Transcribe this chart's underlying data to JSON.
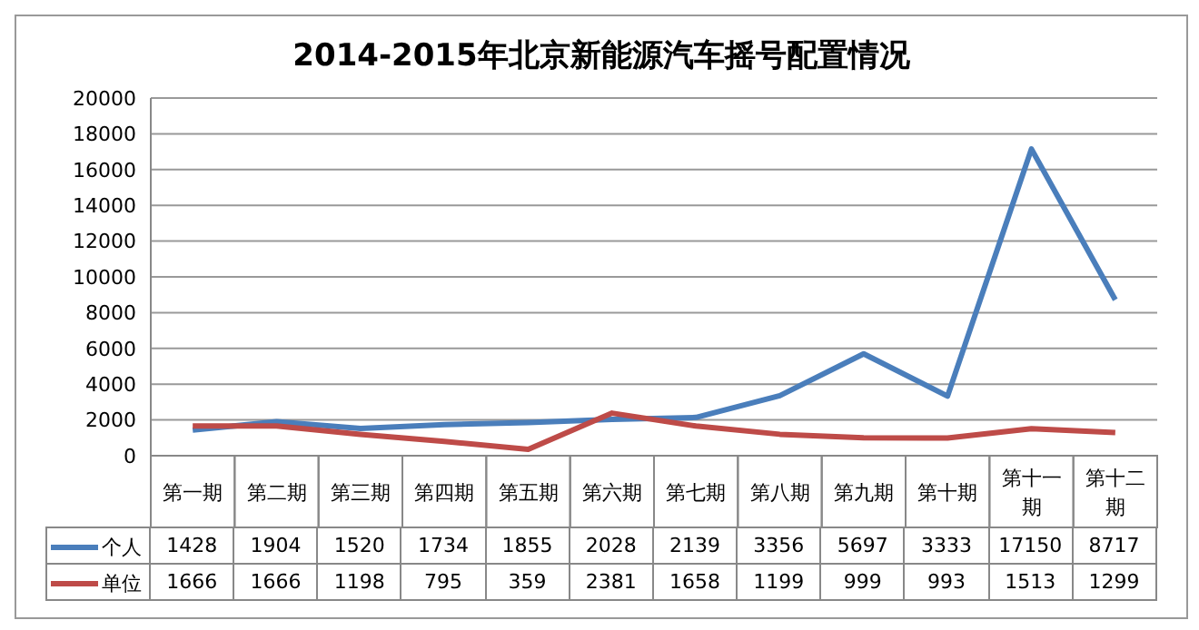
{
  "chart_data": {
    "type": "line",
    "title": "2014-2015年北京新能源汽车摇号配置情况",
    "categories": [
      "第一期",
      "第二期",
      "第三期",
      "第四期",
      "第五期",
      "第六期",
      "第七期",
      "第八期",
      "第九期",
      "第十期",
      "第十一期",
      "第十二期"
    ],
    "series": [
      {
        "name": "个人",
        "color": "#4a7ebb",
        "values": [
          1428,
          1904,
          1520,
          1734,
          1855,
          2028,
          2139,
          3356,
          5697,
          3333,
          17150,
          8717
        ]
      },
      {
        "name": "单位",
        "color": "#be4b48",
        "values": [
          1666,
          1666,
          1198,
          795,
          359,
          2381,
          1658,
          1199,
          999,
          993,
          1513,
          1299
        ]
      }
    ],
    "ylim": [
      0,
      20000
    ],
    "yticks": [
      0,
      2000,
      4000,
      6000,
      8000,
      10000,
      12000,
      14000,
      16000,
      18000,
      20000
    ],
    "grid": "y",
    "legend": "bottom left",
    "data_labels": true,
    "marker": "none",
    "line_style": "solid"
  }
}
